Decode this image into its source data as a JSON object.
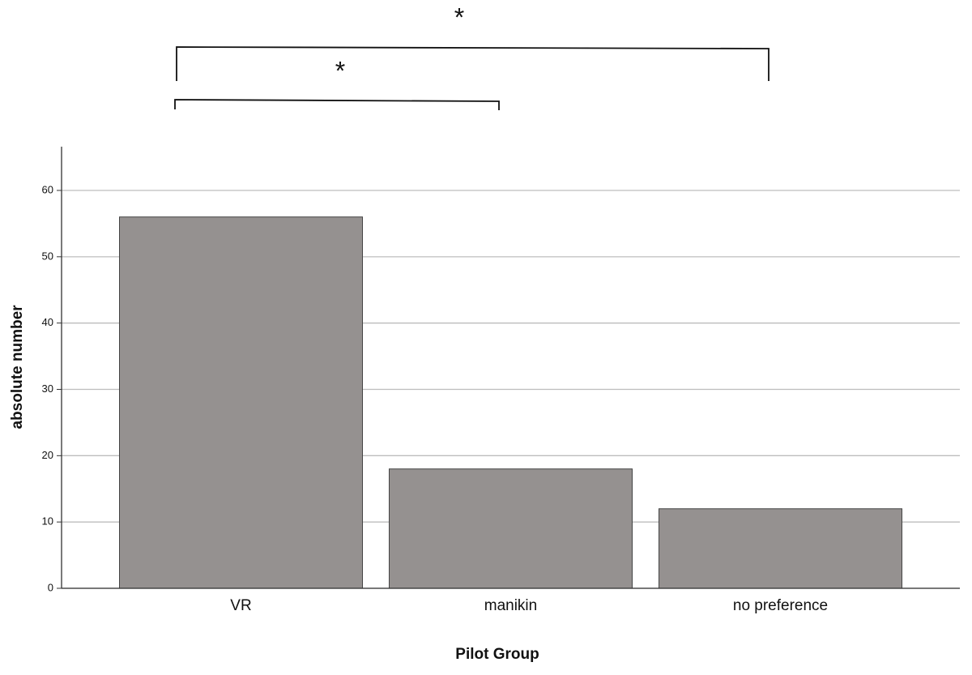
{
  "chart_data": {
    "type": "bar",
    "categories": [
      "VR",
      "manikin",
      "no preference"
    ],
    "values": [
      56,
      18,
      12
    ],
    "color": "#959190",
    "ylim": [
      0,
      66.6
    ],
    "yticks": [
      0,
      10,
      20,
      30,
      40,
      50,
      60
    ],
    "grid": true,
    "xlabel": "Pilot Group",
    "ylabel": "absolute number",
    "annotations": [
      "*",
      "*"
    ]
  }
}
